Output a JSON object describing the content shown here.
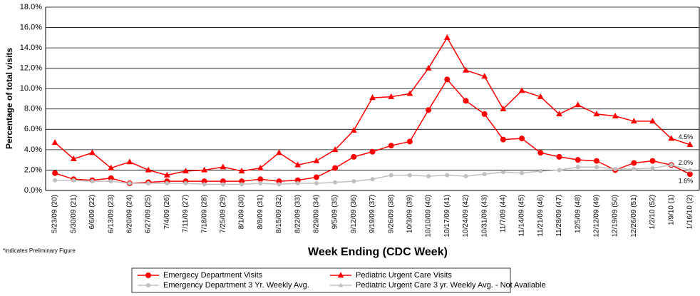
{
  "chart_data": {
    "type": "line",
    "categories": [
      "5/23/09 (20)",
      "5/30/09 (21)",
      "6/6/09 (22)",
      "6/13/09 (23)",
      "6/20/09 (24)",
      "6/27/09 (25)",
      "7/4/09 (26)",
      "7/11/09 (27)",
      "7/18/09 (28)",
      "7/25/09 (29)",
      "8/1/09 (30)",
      "8/8/09 (31)",
      "8/15/09 (32)",
      "8/22/09 (33)",
      "8/29/09 (34)",
      "9/5/09 (35)",
      "9/12/09 (36)",
      "9/19/09 (37)",
      "9/26/09 (38)",
      "10/3/09 (39)",
      "10/10/09 (40)",
      "10/17/09 (41)",
      "10/24/09 (42)",
      "10/31/09 (43)",
      "11/7/09 (44)",
      "11/14/09 (45)",
      "11/21/09 (46)",
      "11/28/09 (47)",
      "12/5/09 (48)",
      "12/12/09 (49)",
      "12/19/09 (50)",
      "12/26/09 (51)",
      "1/2/10 (52)",
      "1/9/10 (1)",
      "1/16/10 (2)"
    ],
    "series": [
      {
        "name": "Emergecy Department Visits",
        "color": "#ff0000",
        "marker": "circle",
        "values": [
          1.7,
          1.1,
          1.0,
          1.2,
          0.7,
          0.8,
          0.9,
          0.9,
          0.9,
          0.9,
          0.9,
          1.1,
          0.9,
          1.0,
          1.3,
          2.2,
          3.3,
          3.8,
          4.4,
          4.8,
          7.9,
          10.9,
          8.8,
          7.5,
          5.0,
          5.1,
          3.7,
          3.3,
          3.0,
          2.9,
          2.0,
          2.7,
          2.9,
          2.5,
          1.6
        ],
        "value_labels": [
          null,
          null,
          null,
          null,
          null,
          null,
          null,
          null,
          null,
          null,
          null,
          null,
          null,
          null,
          null,
          null,
          null,
          null,
          null,
          null,
          null,
          null,
          null,
          null,
          null,
          null,
          null,
          null,
          null,
          null,
          null,
          null,
          null,
          null,
          "1.6%"
        ]
      },
      {
        "name": "Pediatric Urgent Care Visits",
        "color": "#ff0000",
        "marker": "triangle",
        "values": [
          4.7,
          3.1,
          3.7,
          2.2,
          2.8,
          2.0,
          1.5,
          1.9,
          2.0,
          2.3,
          1.9,
          2.2,
          3.7,
          2.5,
          2.9,
          4.0,
          5.9,
          9.1,
          9.2,
          9.5,
          12.0,
          15.0,
          11.8,
          11.2,
          8.0,
          9.8,
          9.2,
          7.5,
          8.4,
          7.5,
          7.3,
          6.8,
          6.8,
          5.1,
          4.5
        ],
        "value_labels": [
          null,
          null,
          null,
          null,
          null,
          null,
          null,
          null,
          null,
          null,
          null,
          null,
          null,
          null,
          null,
          null,
          null,
          null,
          null,
          null,
          null,
          null,
          null,
          null,
          null,
          null,
          null,
          null,
          null,
          null,
          null,
          null,
          null,
          null,
          "4.5%"
        ]
      },
      {
        "name": "Emergency Department 3 Yr. Weekly Avg.",
        "color": "#c0c0c0",
        "marker": "circle",
        "values": [
          1.0,
          1.0,
          0.9,
          0.9,
          0.7,
          0.7,
          0.7,
          0.7,
          0.6,
          0.6,
          0.6,
          0.7,
          0.6,
          0.7,
          0.7,
          0.8,
          0.9,
          1.1,
          1.5,
          1.5,
          1.4,
          1.5,
          1.4,
          1.6,
          1.8,
          1.7,
          1.9,
          2.0,
          2.3,
          2.3,
          2.1,
          2.1,
          2.2,
          2.5,
          2.0
        ],
        "value_labels": [
          null,
          null,
          null,
          null,
          null,
          null,
          null,
          null,
          null,
          null,
          null,
          null,
          null,
          null,
          null,
          null,
          null,
          null,
          null,
          null,
          null,
          null,
          null,
          null,
          null,
          null,
          null,
          null,
          null,
          null,
          null,
          null,
          null,
          null,
          "2.0%"
        ]
      },
      {
        "name": "Pediatric Urgent Care 3 yr. Weekly Avg. - Not Available",
        "color": "#c0c0c0",
        "marker": "triangle",
        "values": [
          null,
          null,
          null,
          null,
          null,
          null,
          null,
          null,
          null,
          null,
          null,
          null,
          null,
          null,
          null,
          null,
          null,
          null,
          null,
          null,
          null,
          null,
          null,
          null,
          null,
          null,
          null,
          null,
          null,
          null,
          null,
          null,
          null,
          null,
          null
        ]
      }
    ],
    "ylim": [
      0,
      18
    ],
    "yticks": [
      {
        "value": 0,
        "label": "0.0%"
      },
      {
        "value": 2,
        "label": "2.0%"
      },
      {
        "value": 4,
        "label": "4.0%"
      },
      {
        "value": 6,
        "label": "6.0%"
      },
      {
        "value": 8,
        "label": "8.0%"
      },
      {
        "value": 10,
        "label": "10.0%"
      },
      {
        "value": 12,
        "label": "12.0%"
      },
      {
        "value": 14,
        "label": "14.0%"
      },
      {
        "value": 16,
        "label": "16.0%"
      },
      {
        "value": 18,
        "label": "18.0%"
      }
    ],
    "grid": true,
    "xlabel": "Week Ending (CDC Week)",
    "ylabel": "Percentage of total visits",
    "annotation": "*indicates Preliminary Figure"
  }
}
